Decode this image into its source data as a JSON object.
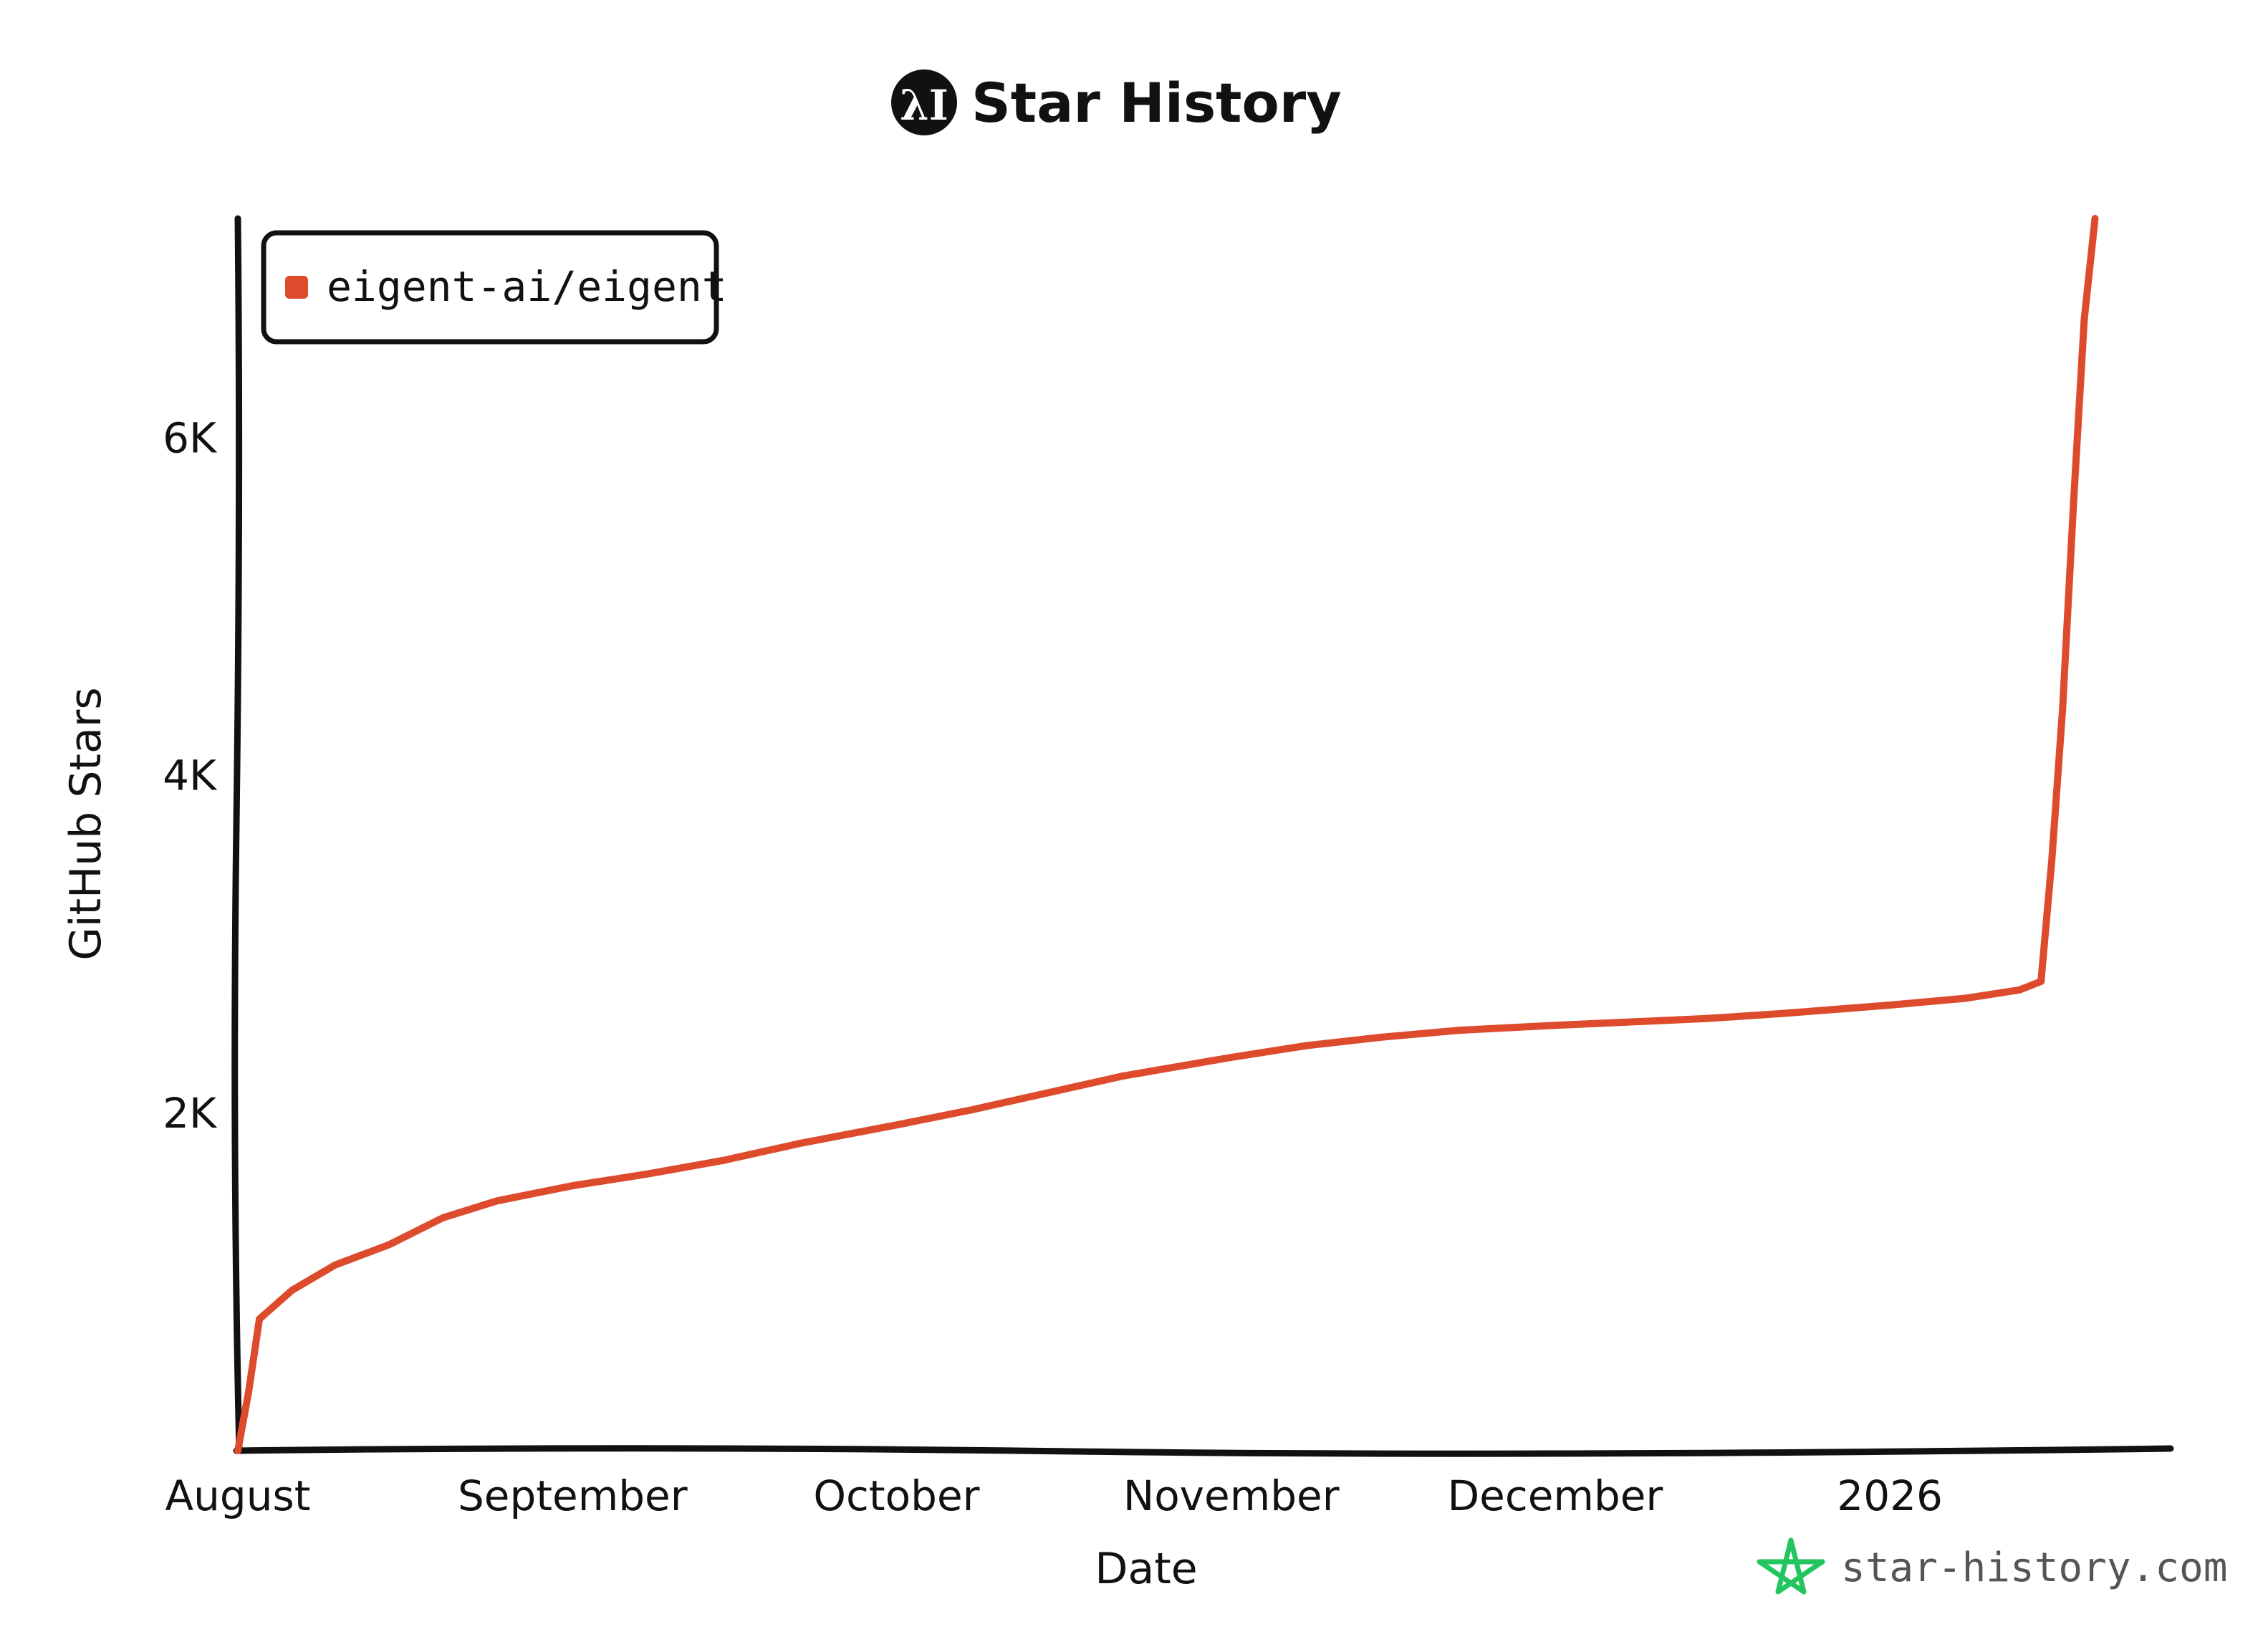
{
  "header": {
    "title": "Star History",
    "logo_text": "λI"
  },
  "watermark": {
    "text": "star-history.com",
    "icon": "star-outline-icon",
    "color": "#22c55e"
  },
  "chart_data": {
    "type": "line",
    "title": "Star History",
    "xlabel": "Date",
    "ylabel": "GitHub Stars",
    "x_ticks": [
      {
        "label": "August",
        "date": "2025-08-01"
      },
      {
        "label": "September",
        "date": "2025-09-01"
      },
      {
        "label": "October",
        "date": "2025-10-01"
      },
      {
        "label": "November",
        "date": "2025-11-01"
      },
      {
        "label": "December",
        "date": "2025-12-01"
      },
      {
        "label": "2026",
        "date": "2026-01-01"
      }
    ],
    "y_ticks": [
      {
        "label": "2K",
        "value": 2000
      },
      {
        "label": "4K",
        "value": 4000
      },
      {
        "label": "6K",
        "value": 6000
      }
    ],
    "xlim": [
      "2025-08-01",
      "2026-01-27"
    ],
    "ylim": [
      0,
      7300
    ],
    "grid": false,
    "legend_position": "top-left",
    "series": [
      {
        "name": "eigent-ai/eigent",
        "color": "#dd4b2c",
        "points": [
          {
            "x": "2025-08-01",
            "y": 0
          },
          {
            "x": "2025-08-02",
            "y": 350
          },
          {
            "x": "2025-08-03",
            "y": 780
          },
          {
            "x": "2025-08-06",
            "y": 950
          },
          {
            "x": "2025-08-10",
            "y": 1100
          },
          {
            "x": "2025-08-15",
            "y": 1220
          },
          {
            "x": "2025-08-20",
            "y": 1380
          },
          {
            "x": "2025-08-25",
            "y": 1480
          },
          {
            "x": "2025-09-01",
            "y": 1570
          },
          {
            "x": "2025-09-08",
            "y": 1640
          },
          {
            "x": "2025-09-15",
            "y": 1720
          },
          {
            "x": "2025-09-22",
            "y": 1820
          },
          {
            "x": "2025-10-01",
            "y": 1930
          },
          {
            "x": "2025-10-08",
            "y": 2020
          },
          {
            "x": "2025-10-15",
            "y": 2120
          },
          {
            "x": "2025-10-22",
            "y": 2220
          },
          {
            "x": "2025-11-01",
            "y": 2330
          },
          {
            "x": "2025-11-08",
            "y": 2400
          },
          {
            "x": "2025-11-15",
            "y": 2450
          },
          {
            "x": "2025-11-22",
            "y": 2490
          },
          {
            "x": "2025-12-01",
            "y": 2520
          },
          {
            "x": "2025-12-08",
            "y": 2540
          },
          {
            "x": "2025-12-15",
            "y": 2560
          },
          {
            "x": "2025-12-22",
            "y": 2590
          },
          {
            "x": "2026-01-01",
            "y": 2640
          },
          {
            "x": "2026-01-08",
            "y": 2680
          },
          {
            "x": "2026-01-13",
            "y": 2730
          },
          {
            "x": "2026-01-15",
            "y": 2780
          },
          {
            "x": "2026-01-16",
            "y": 3500
          },
          {
            "x": "2026-01-17",
            "y": 4400
          },
          {
            "x": "2026-01-18",
            "y": 5600
          },
          {
            "x": "2026-01-19",
            "y": 6700
          },
          {
            "x": "2026-01-20",
            "y": 7300
          }
        ]
      }
    ]
  }
}
